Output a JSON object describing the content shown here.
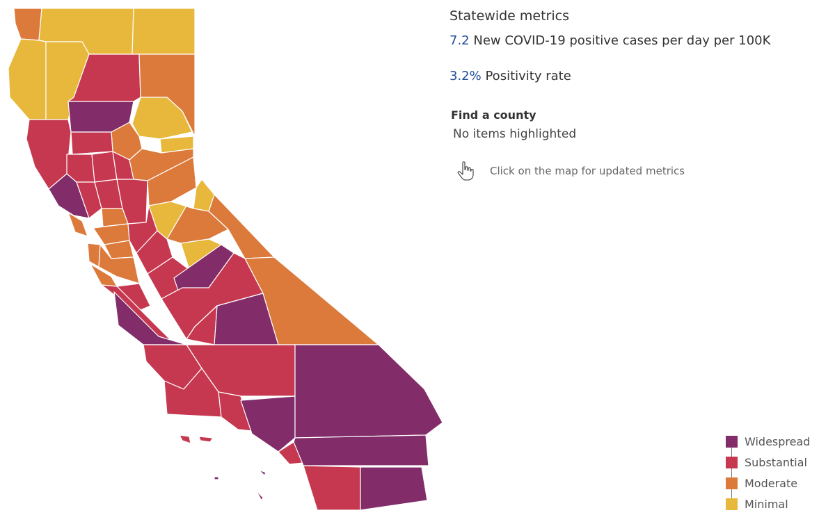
{
  "statewide": {
    "heading": "Statewide metrics",
    "cases_value": "7.2",
    "cases_label": "New COVID-19 positive cases per day per 100K",
    "positivity_value": "3.2%",
    "positivity_label": "Positivity rate"
  },
  "find_county": {
    "label": "Find a county",
    "value": "No items highlighted"
  },
  "hint": {
    "icon": "pointer-hand-icon",
    "text": "Click on the map for updated metrics"
  },
  "legend": {
    "items": [
      {
        "label": "Widespread",
        "color": "#822c69"
      },
      {
        "label": "Substantial",
        "color": "#c6384f"
      },
      {
        "label": "Moderate",
        "color": "#dc7a3c"
      },
      {
        "label": "Minimal",
        "color": "#e7b83b"
      }
    ]
  }
}
